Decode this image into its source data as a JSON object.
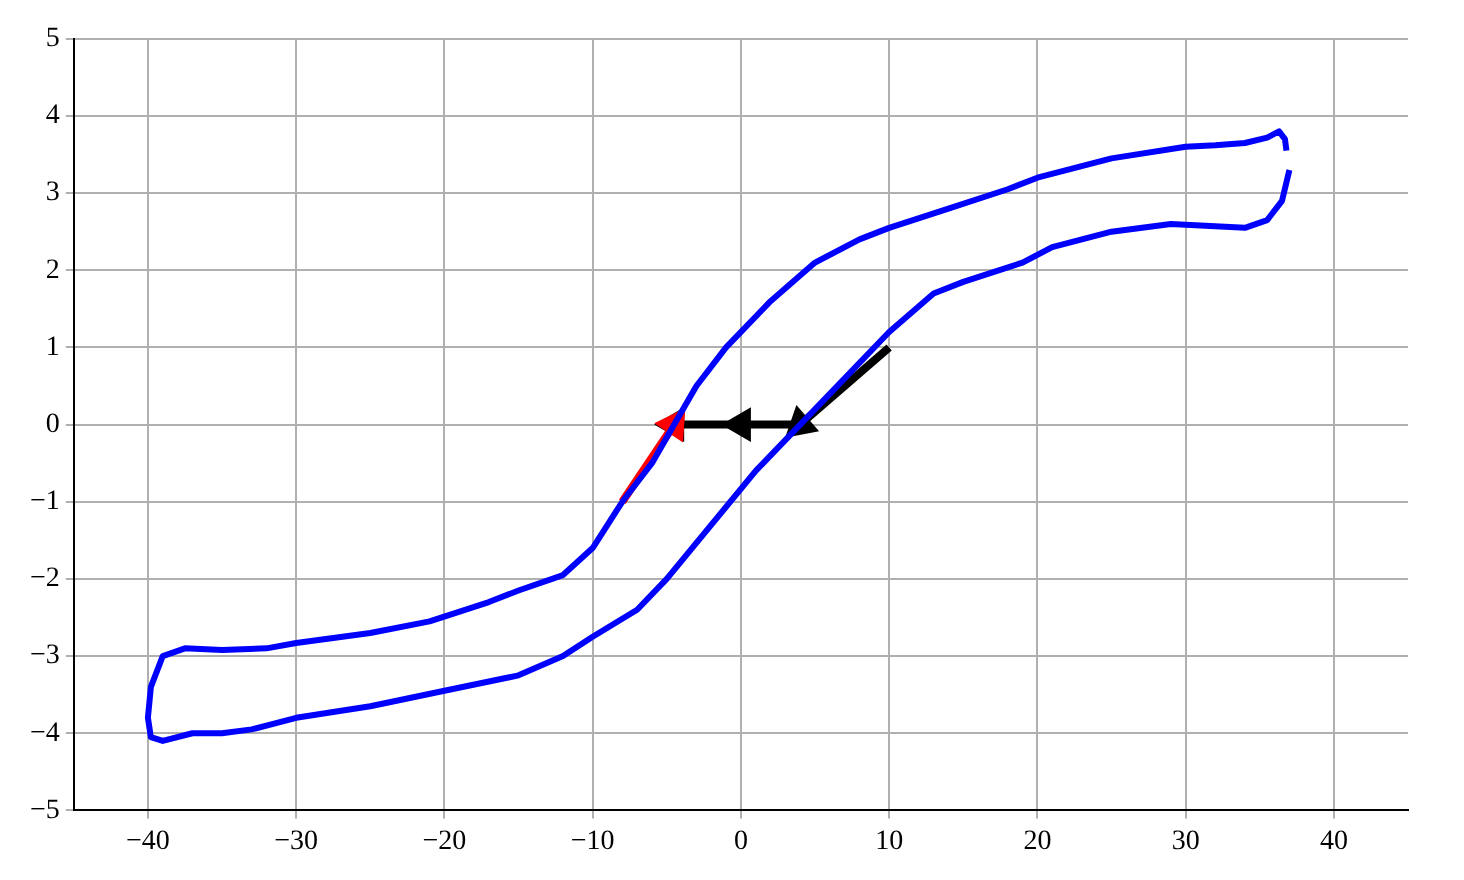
{
  "chart_data": {
    "type": "line",
    "xlim": [
      -45,
      45
    ],
    "ylim": [
      -5,
      5
    ],
    "xticks": [
      {
        "value": -40,
        "label": "−40"
      },
      {
        "value": -30,
        "label": "−30"
      },
      {
        "value": -20,
        "label": "−20"
      },
      {
        "value": -10,
        "label": "−10"
      },
      0,
      10,
      20,
      30,
      40
    ],
    "yticks": [
      {
        "value": -5,
        "label": "−5"
      },
      {
        "value": -4,
        "label": "−4"
      },
      {
        "value": -3,
        "label": "−3"
      },
      {
        "value": -2,
        "label": "−2"
      },
      {
        "value": -1,
        "label": "−1"
      },
      0,
      1,
      2,
      3,
      4,
      5
    ],
    "grid": true,
    "marker": "none",
    "line_style": "solid",
    "series": [
      {
        "color": "#0000ff",
        "x": [
          37,
          36.5,
          35.5,
          34,
          31,
          29,
          25,
          21,
          19,
          15,
          13,
          10,
          7,
          4,
          1,
          -2,
          -5,
          -7,
          -10,
          -12,
          -15,
          -20,
          -25,
          -30,
          -33,
          -35,
          -37,
          -39,
          -39.8,
          -40,
          -39.8,
          -39,
          -37.5,
          -35,
          -32,
          -30,
          -25,
          -21,
          -17,
          -15,
          -12,
          -10,
          -8,
          -6,
          -4.5,
          -3,
          -1,
          2,
          5,
          8,
          10,
          14,
          18,
          20,
          25,
          30,
          32,
          34,
          35.5,
          36.3,
          36.7,
          36.8
        ],
        "values": [
          3.3,
          2.9,
          2.65,
          2.55,
          2.58,
          2.6,
          2.5,
          2.3,
          2.1,
          1.85,
          1.7,
          1.2,
          0.6,
          0,
          -0.6,
          -1.3,
          -2,
          -2.4,
          -2.75,
          -3,
          -3.25,
          -3.45,
          -3.65,
          -3.8,
          -3.95,
          -4,
          -4,
          -4.1,
          -4.05,
          -3.8,
          -3.4,
          -3,
          -2.9,
          -2.92,
          -2.9,
          -2.83,
          -2.7,
          -2.55,
          -2.3,
          -2.15,
          -1.95,
          -1.6,
          -1,
          -0.5,
          0,
          0.5,
          1,
          1.6,
          2.1,
          2.4,
          2.55,
          2.8,
          3.05,
          3.2,
          3.45,
          3.6,
          3.62,
          3.65,
          3.72,
          3.8,
          3.7,
          3.55
        ]
      },
      {
        "color": "#ff0000",
        "marker": "triangle",
        "x": [
          -8,
          -4.5
        ],
        "values": [
          -1,
          0
        ]
      },
      {
        "color": "#000000",
        "marker": "triangle",
        "x": [
          10,
          4,
          0,
          -4.5
        ],
        "values": [
          1,
          0,
          0,
          0
        ]
      }
    ]
  }
}
